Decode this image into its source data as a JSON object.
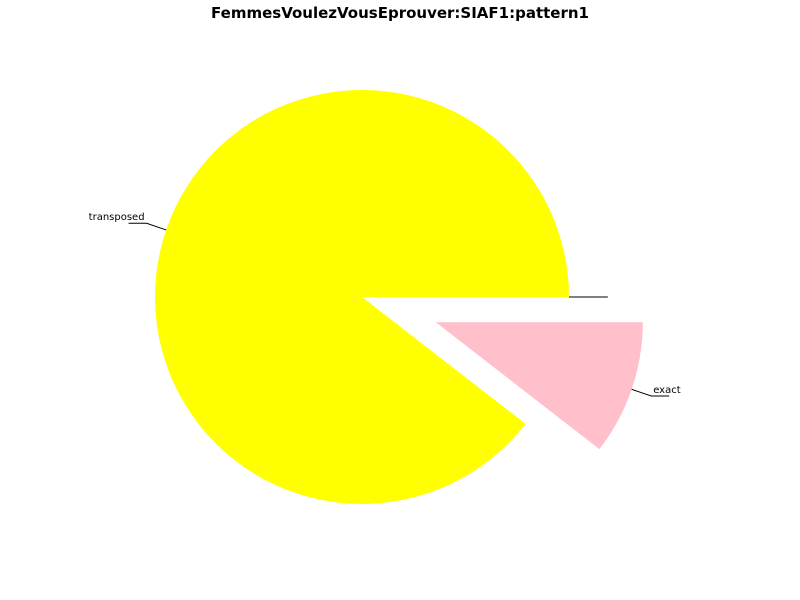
{
  "chart_data": {
    "type": "pie",
    "title": "FemmesVoulezVousEprouver:SIAF1:pattern1",
    "slices": [
      {
        "label": "transposed",
        "value": 89.5,
        "color": "#ffff00",
        "explode": false
      },
      {
        "label": "exact",
        "value": 10.5,
        "color": "#ffc0cb",
        "explode": true
      },
      {
        "label": "",
        "value": 0,
        "color": "#ffffff",
        "explode": false
      },
      {
        "label": "",
        "value": 0,
        "color": "#ffffff",
        "explode": false
      }
    ]
  }
}
